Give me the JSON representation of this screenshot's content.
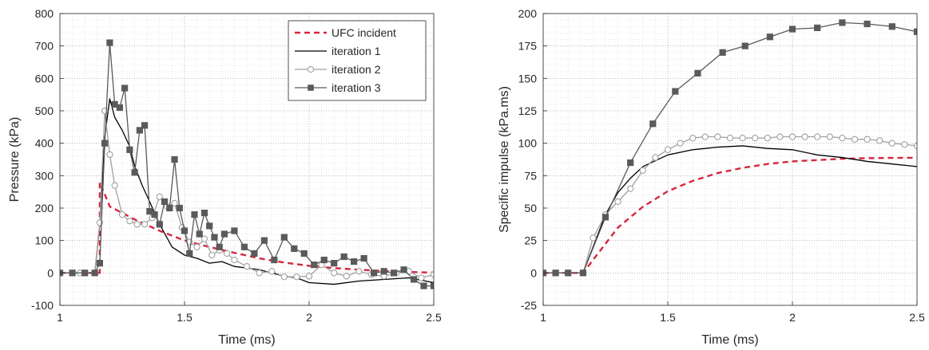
{
  "chart_data": [
    {
      "type": "line",
      "xlabel": "Time (ms)",
      "ylabel": "Pressure (kPa)",
      "xlim": [
        1,
        2.5
      ],
      "ylim": [
        -100,
        800
      ],
      "xticks": [
        "1",
        "1.5",
        "2",
        "2.5"
      ],
      "yticks": [
        "-100",
        "0",
        "100",
        "200",
        "300",
        "400",
        "500",
        "600",
        "700",
        "800"
      ],
      "grid": "major and minor, dotted",
      "legend": {
        "placement": "top-right",
        "entries": [
          "UFC incident",
          "iteration 1",
          "iteration 2",
          "iteration 3"
        ]
      },
      "series": [
        {
          "name": "UFC incident",
          "color": "#d7263d",
          "style": "dashed",
          "marker": "none",
          "x": [
            1.0,
            1.16,
            1.16,
            1.2,
            1.3,
            1.4,
            1.5,
            1.6,
            1.7,
            1.8,
            1.9,
            2.0,
            2.1,
            2.2,
            2.3,
            2.4,
            2.5
          ],
          "y": [
            0,
            0,
            280,
            205,
            165,
            130,
            100,
            80,
            62,
            45,
            32,
            22,
            15,
            10,
            6,
            3,
            1
          ]
        },
        {
          "name": "iteration 1",
          "color": "#000000",
          "style": "solid",
          "marker": "none",
          "x": [
            1.0,
            1.14,
            1.16,
            1.18,
            1.2,
            1.22,
            1.25,
            1.28,
            1.3,
            1.33,
            1.36,
            1.4,
            1.45,
            1.5,
            1.55,
            1.6,
            1.65,
            1.7,
            1.75,
            1.8,
            1.85,
            1.9,
            1.95,
            2.0,
            2.1,
            2.2,
            2.3,
            2.4,
            2.5
          ],
          "y": [
            0,
            0,
            150,
            420,
            537,
            480,
            440,
            390,
            330,
            270,
            220,
            150,
            80,
            55,
            45,
            30,
            35,
            20,
            15,
            10,
            0,
            -10,
            -15,
            -30,
            -35,
            -25,
            -20,
            -15,
            -30
          ]
        },
        {
          "name": "iteration 2",
          "color": "#a0a0a0",
          "style": "solid",
          "marker": "circle",
          "x": [
            1.0,
            1.05,
            1.08,
            1.14,
            1.16,
            1.18,
            1.2,
            1.22,
            1.25,
            1.28,
            1.31,
            1.34,
            1.37,
            1.4,
            1.43,
            1.46,
            1.49,
            1.52,
            1.55,
            1.58,
            1.61,
            1.64,
            1.67,
            1.7,
            1.75,
            1.8,
            1.85,
            1.9,
            1.95,
            2.0,
            2.05,
            2.1,
            2.15,
            2.2,
            2.25,
            2.3,
            2.35,
            2.4,
            2.45,
            2.5
          ],
          "y": [
            0,
            0,
            0,
            0,
            155,
            500,
            365,
            270,
            180,
            160,
            150,
            150,
            170,
            235,
            205,
            215,
            140,
            95,
            80,
            105,
            55,
            70,
            60,
            40,
            20,
            0,
            5,
            -12,
            -12,
            -10,
            25,
            0,
            -10,
            5,
            -5,
            -10,
            0,
            5,
            -15,
            -5
          ]
        },
        {
          "name": "iteration 3",
          "color": "#5a5a5a",
          "style": "solid",
          "marker": "square",
          "x": [
            1.0,
            1.05,
            1.1,
            1.14,
            1.16,
            1.18,
            1.2,
            1.22,
            1.24,
            1.26,
            1.28,
            1.3,
            1.32,
            1.34,
            1.36,
            1.38,
            1.4,
            1.42,
            1.44,
            1.46,
            1.48,
            1.5,
            1.52,
            1.54,
            1.56,
            1.58,
            1.6,
            1.62,
            1.64,
            1.66,
            1.7,
            1.74,
            1.78,
            1.82,
            1.86,
            1.9,
            1.94,
            1.98,
            2.02,
            2.06,
            2.1,
            2.14,
            2.18,
            2.22,
            2.26,
            2.3,
            2.34,
            2.38,
            2.42,
            2.46,
            2.5
          ],
          "y": [
            0,
            0,
            0,
            0,
            30,
            400,
            710,
            520,
            510,
            570,
            380,
            310,
            440,
            455,
            190,
            180,
            150,
            220,
            200,
            350,
            200,
            130,
            60,
            180,
            120,
            185,
            145,
            110,
            80,
            120,
            130,
            80,
            60,
            100,
            40,
            110,
            75,
            60,
            25,
            40,
            30,
            50,
            35,
            45,
            0,
            5,
            0,
            10,
            -20,
            -40,
            -40
          ]
        }
      ]
    },
    {
      "type": "line",
      "xlabel": "Time (ms)",
      "ylabel": "Specific impulse (kPa.ms)",
      "xlim": [
        1,
        2.5
      ],
      "ylim": [
        -25,
        200
      ],
      "xticks": [
        "1",
        "1.5",
        "2",
        "2.5"
      ],
      "yticks": [
        "-25",
        "0",
        "25",
        "50",
        "75",
        "100",
        "125",
        "150",
        "175",
        "200"
      ],
      "grid": "major and minor, dotted",
      "series": [
        {
          "name": "UFC incident",
          "color": "#d7263d",
          "style": "dashed",
          "marker": "none",
          "x": [
            1.0,
            1.16,
            1.2,
            1.3,
            1.4,
            1.5,
            1.6,
            1.7,
            1.8,
            1.9,
            2.0,
            2.1,
            2.2,
            2.3,
            2.4,
            2.5
          ],
          "y": [
            0,
            0,
            10,
            35,
            51,
            63,
            71,
            77,
            81,
            84,
            86,
            87,
            88,
            88.5,
            88.7,
            88.8
          ]
        },
        {
          "name": "iteration 1",
          "color": "#000000",
          "style": "solid",
          "marker": "none",
          "x": [
            1.0,
            1.16,
            1.2,
            1.25,
            1.3,
            1.35,
            1.4,
            1.5,
            1.6,
            1.7,
            1.8,
            1.9,
            2.0,
            2.1,
            2.2,
            2.3,
            2.4,
            2.5
          ],
          "y": [
            0,
            0,
            20,
            45,
            62,
            73,
            82,
            91,
            95,
            97,
            98,
            96,
            95,
            91,
            89,
            86,
            84,
            82
          ]
        },
        {
          "name": "iteration 2",
          "color": "#a0a0a0",
          "style": "solid",
          "marker": "circle",
          "x": [
            1.0,
            1.05,
            1.1,
            1.16,
            1.2,
            1.25,
            1.3,
            1.35,
            1.4,
            1.45,
            1.5,
            1.55,
            1.6,
            1.65,
            1.7,
            1.75,
            1.8,
            1.85,
            1.9,
            1.95,
            2.0,
            2.05,
            2.1,
            2.15,
            2.2,
            2.25,
            2.3,
            2.35,
            2.4,
            2.45,
            2.5
          ],
          "y": [
            0,
            0,
            0,
            0,
            27,
            45,
            55,
            65,
            79,
            89,
            95,
            100,
            104,
            105,
            105,
            104,
            104,
            104,
            104,
            105,
            105,
            105,
            105,
            105,
            104,
            103,
            103,
            102,
            100,
            99,
            98
          ]
        },
        {
          "name": "iteration 3",
          "color": "#5a5a5a",
          "style": "solid",
          "marker": "square",
          "x": [
            1.0,
            1.05,
            1.1,
            1.16,
            1.25,
            1.35,
            1.44,
            1.53,
            1.62,
            1.72,
            1.81,
            1.91,
            2.0,
            2.1,
            2.2,
            2.3,
            2.4,
            2.5
          ],
          "y": [
            0,
            0,
            0,
            0,
            43,
            85,
            115,
            140,
            154,
            170,
            175,
            182,
            188,
            189,
            193,
            192,
            190,
            186
          ]
        }
      ]
    }
  ]
}
